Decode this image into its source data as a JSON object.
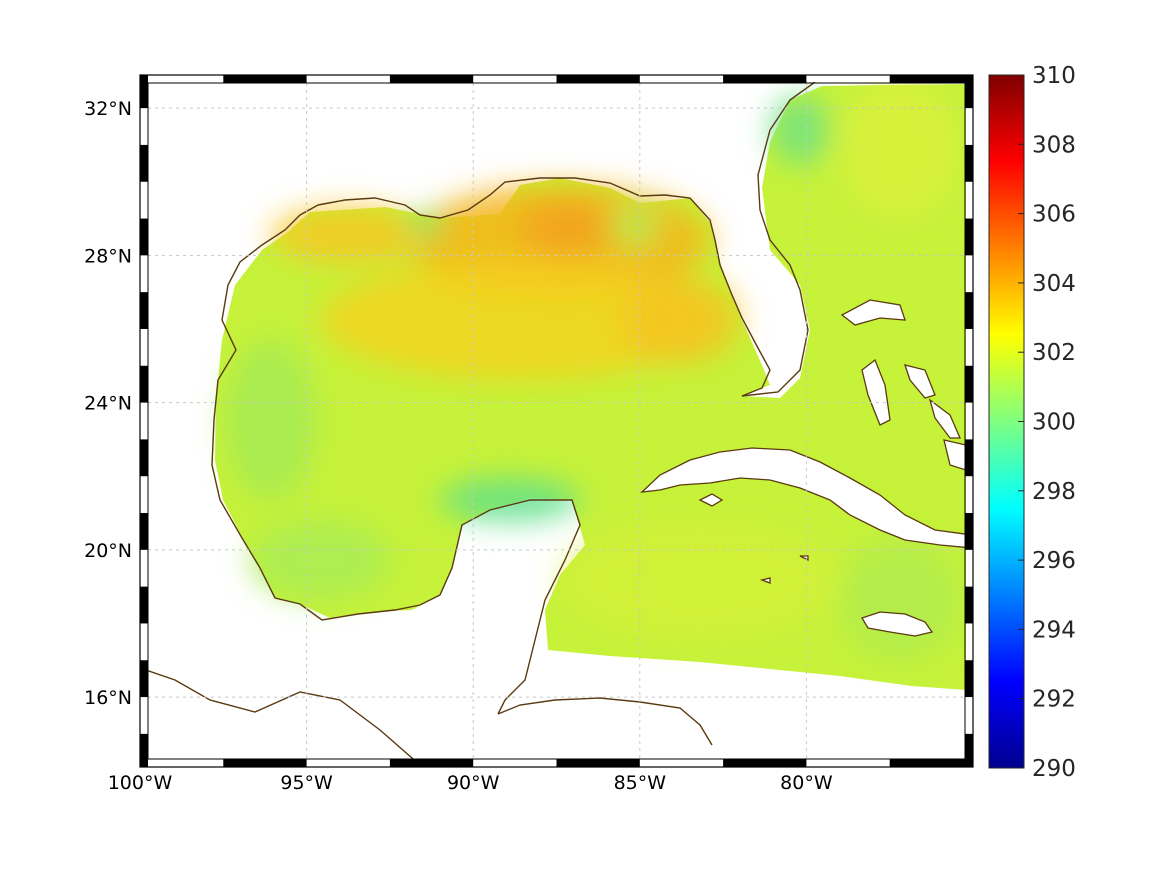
{
  "map": {
    "projection": "equirectangular",
    "lon_range": [
      -100,
      -75
    ],
    "lat_range": [
      14.1,
      32.9
    ],
    "lon_ticks": [
      {
        "value": -100,
        "label": "100°W"
      },
      {
        "value": -95,
        "label": "95°W"
      },
      {
        "value": -90,
        "label": "90°W"
      },
      {
        "value": -85,
        "label": "85°W"
      },
      {
        "value": -80,
        "label": "80°W"
      }
    ],
    "lat_ticks": [
      {
        "value": 32,
        "label": "32°N"
      },
      {
        "value": 28,
        "label": "28°N"
      },
      {
        "value": 24,
        "label": "24°N"
      },
      {
        "value": 20,
        "label": "20°N"
      },
      {
        "value": 16,
        "label": "16°N"
      }
    ],
    "grid": true,
    "frame_style": "black-and-white checkered border",
    "coastline_color": "#5a3a10",
    "land_color": "#ffffff"
  },
  "colorbar": {
    "min": 290,
    "max": 310,
    "colormap": "jet",
    "placement": "right",
    "ticks": [
      "310",
      "308",
      "306",
      "304",
      "302",
      "300",
      "298",
      "296",
      "294",
      "292",
      "290"
    ]
  },
  "chart_data": {
    "type": "heatmap",
    "variable_range": [
      290,
      310
    ],
    "field_summary": {
      "typical_value": 302,
      "northern_gulf_max": 304.5,
      "yucatan_shelf_min": 299,
      "florida_east_coast": 300.5,
      "caribbean": 302
    }
  }
}
